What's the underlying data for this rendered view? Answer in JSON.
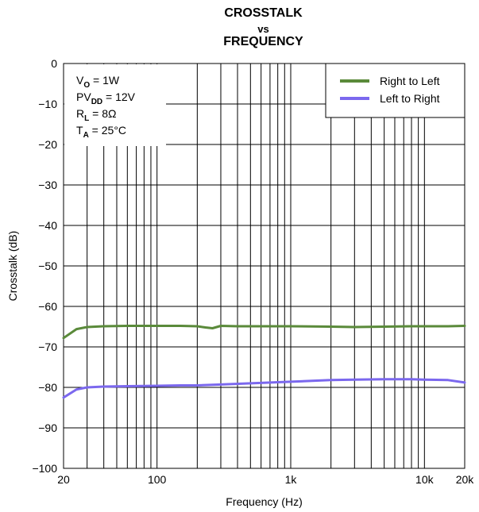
{
  "title": {
    "line1": "CROSSTALK",
    "line2": "vs",
    "line3": "FREQUENCY"
  },
  "chart_data": {
    "type": "line",
    "xlabel": "Frequency (Hz)",
    "ylabel": "Crosstalk (dB)",
    "x_scale": "log",
    "xlim": [
      20,
      20000
    ],
    "ylim": [
      -100,
      0
    ],
    "grid": true,
    "x_tick_values": [
      20,
      100,
      1000,
      10000,
      20000
    ],
    "x_tick_labels": [
      "20",
      "100",
      "1k",
      "10k",
      "20k"
    ],
    "y_ticks": [
      0,
      -10,
      -20,
      -30,
      -40,
      -50,
      -60,
      -70,
      -80,
      -90,
      -100
    ],
    "y_tick_labels": [
      "0",
      "−10",
      "−20",
      "−30",
      "−40",
      "−50",
      "−60",
      "−70",
      "−80",
      "−90",
      "−100"
    ],
    "legend_position": "top-right",
    "conditions": [
      {
        "main": "V",
        "sub": "O",
        "rest": " = 1W"
      },
      {
        "main": "PV",
        "sub": "DD",
        "rest": " = 12V"
      },
      {
        "main": "R",
        "sub": "L",
        "rest": " = 8Ω"
      },
      {
        "main": "T",
        "sub": "A",
        "rest": " = 25°C"
      }
    ],
    "series": [
      {
        "name": "Right to Left",
        "color": "#5a8a3a",
        "x": [
          20,
          25,
          30,
          40,
          60,
          100,
          150,
          200,
          230,
          260,
          300,
          400,
          600,
          1000,
          2000,
          3000,
          5000,
          8000,
          10000,
          15000,
          20000
        ],
        "y": [
          -67.8,
          -65.6,
          -65.1,
          -64.9,
          -64.8,
          -64.8,
          -64.8,
          -64.9,
          -65.2,
          -65.4,
          -64.8,
          -64.9,
          -64.9,
          -64.9,
          -65.0,
          -65.1,
          -65.0,
          -64.9,
          -64.9,
          -64.9,
          -64.8
        ]
      },
      {
        "name": "Left to Right",
        "color": "#7b68ee",
        "x": [
          20,
          25,
          30,
          40,
          60,
          100,
          150,
          200,
          300,
          500,
          1000,
          2000,
          3000,
          5000,
          8000,
          10000,
          15000,
          20000
        ],
        "y": [
          -82.5,
          -80.5,
          -80.0,
          -79.8,
          -79.7,
          -79.6,
          -79.5,
          -79.5,
          -79.3,
          -79.0,
          -78.6,
          -78.2,
          -78.1,
          -78.0,
          -78.0,
          -78.1,
          -78.2,
          -78.8
        ]
      }
    ]
  }
}
